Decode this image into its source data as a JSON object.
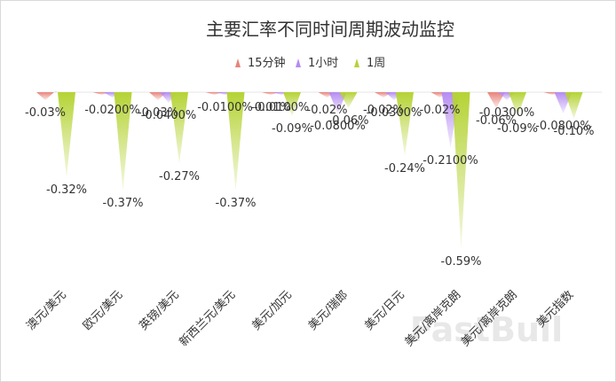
{
  "chart_data": {
    "type": "bar",
    "title": "主要汇率不同时间周期波动监控",
    "categories": [
      "澳元/美元",
      "欧元/美元",
      "英镑/美元",
      "新西兰元/美元",
      "美元/加元",
      "美元/瑞郎",
      "美元/日元",
      "美元/离岸克朗",
      "美元/离岸克朗",
      "美元指数"
    ],
    "series": [
      {
        "name": "15分钟",
        "color": "#e8847a",
        "values": [
          -0.03,
          -0.01,
          -0.03,
          -0.01,
          -0.01,
          -0.02,
          -0.02,
          -0.02,
          -0.06,
          -0.01
        ],
        "labels": [
          "-0.03%",
          "",
          "-0.03%",
          "",
          "-0.01%",
          "-0.02%",
          "-0.02%",
          "-0.02%",
          "-0.06%",
          ""
        ]
      },
      {
        "name": "1小时",
        "color": "#b58cf2",
        "values": [
          0.0,
          -0.02,
          -0.04,
          -0.01,
          -0.01,
          -0.08,
          -0.03,
          -0.21,
          -0.03,
          -0.08
        ],
        "labels": [
          "",
          "-0.0200%",
          "-0.0400%",
          "-0.0100%",
          "-0.0100%",
          "-0.0800%",
          "-0.0300%",
          "-0.2100%",
          "-0.0300%",
          "-0.0800%"
        ]
      },
      {
        "name": "1周",
        "color": "#b5d335",
        "values": [
          -0.32,
          -0.37,
          -0.27,
          -0.37,
          -0.09,
          -0.06,
          -0.24,
          -0.59,
          -0.09,
          -0.1
        ],
        "labels": [
          "-0.32%",
          "-0.37%",
          "-0.27%",
          "-0.37%",
          "-0.09%",
          "-0.06%",
          "-0.24%",
          "-0.59%",
          "-0.09%",
          "-0.10%"
        ]
      }
    ],
    "legend_position": "top-center",
    "grid": false
  },
  "watermark": "FastBull"
}
